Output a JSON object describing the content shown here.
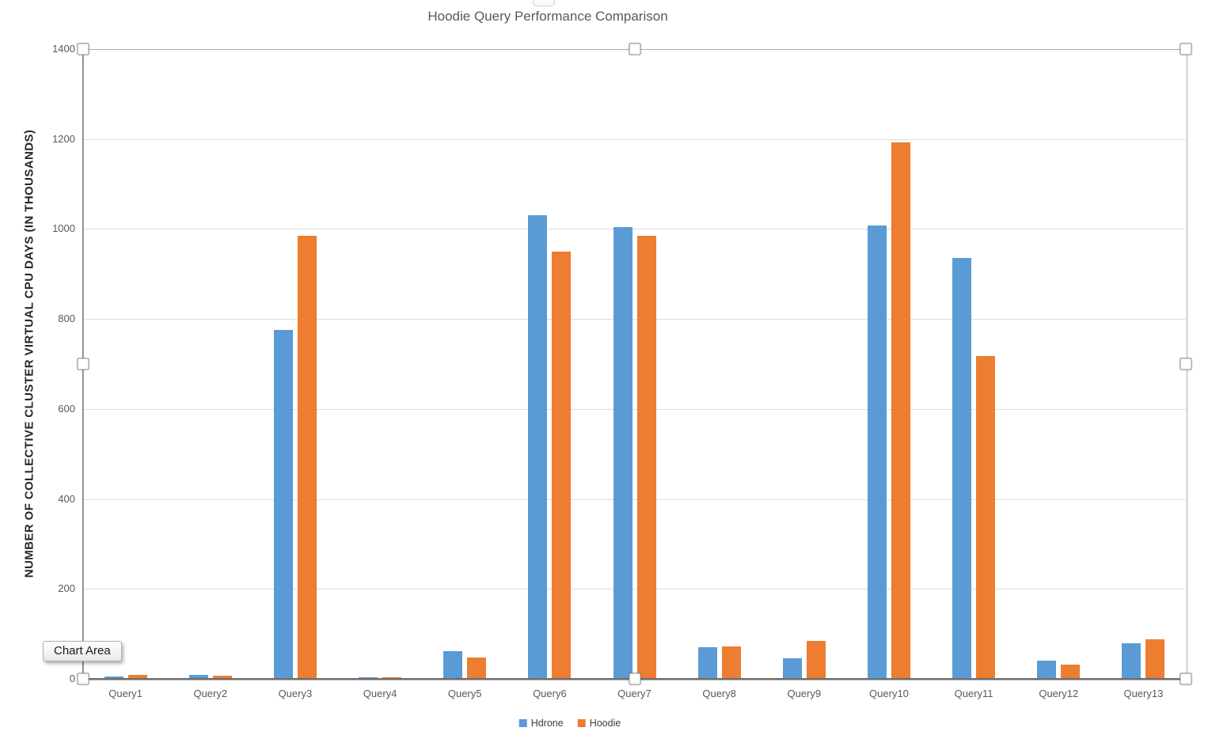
{
  "tooltip_label": "Chart Area",
  "chart_data": {
    "type": "bar",
    "title": "Hoodie Query Performance Comparison",
    "ylabel": "NUMBER OF COLLECTIVE CLUSTER VIRTUAL CPU DAYS (IN THOUSANDS)",
    "xlabel": "",
    "categories": [
      "Query1",
      "Query2",
      "Query3",
      "Query4",
      "Query5",
      "Query6",
      "Query7",
      "Query8",
      "Query9",
      "Query10",
      "Query11",
      "Query12",
      "Query13"
    ],
    "series": [
      {
        "name": "Hdrone",
        "color": "#5B9BD5",
        "values": [
          5,
          9,
          775,
          4,
          62,
          1030,
          1005,
          70,
          46,
          1008,
          935,
          40,
          79
        ]
      },
      {
        "name": "Hoodie",
        "color": "#ED7D31",
        "values": [
          9,
          8,
          985,
          3,
          48,
          950,
          985,
          72,
          85,
          1193,
          718,
          32,
          88
        ]
      }
    ],
    "ylim": [
      0,
      1400
    ],
    "ytick_interval": 200,
    "grid": true,
    "legend_position": "bottom"
  }
}
